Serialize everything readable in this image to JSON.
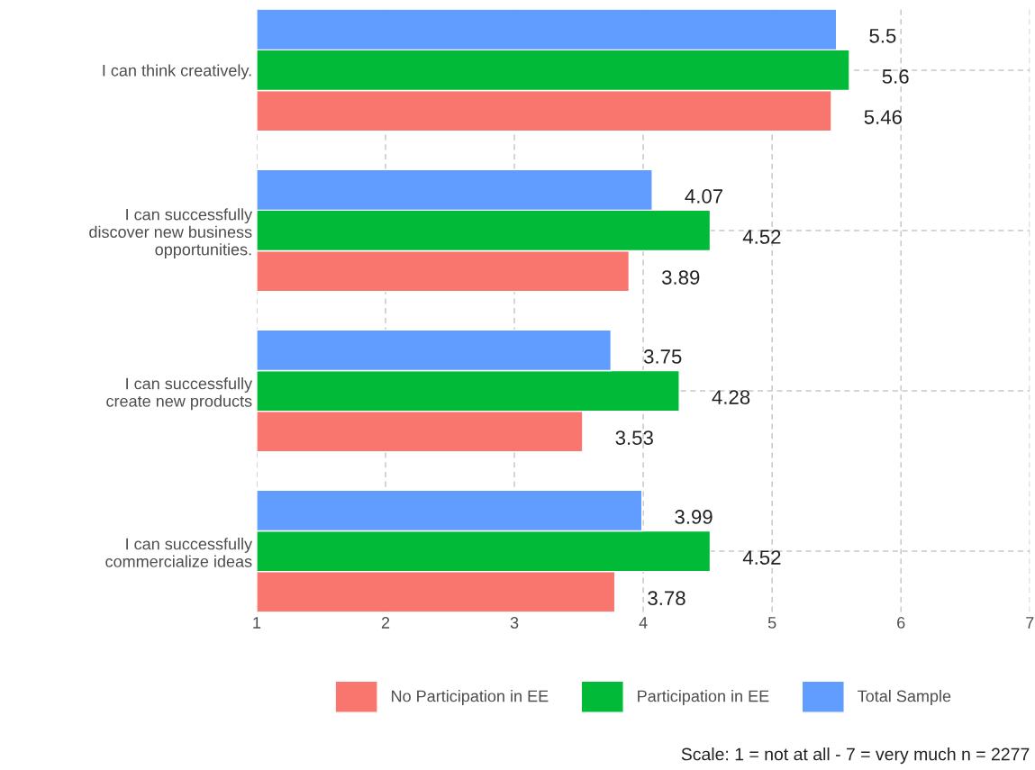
{
  "chart_data": {
    "type": "bar",
    "orientation": "horizontal",
    "categories": [
      "I can think creatively.",
      "I can successfully\ndiscover new business\nopportunities.",
      "I can successfully\ncreate new products",
      "I can successfully\ncommercialize ideas"
    ],
    "series": [
      {
        "name": "No Participation in EE",
        "color": "#f8766d",
        "values": [
          5.46,
          3.89,
          3.53,
          3.78
        ]
      },
      {
        "name": "Participation in EE",
        "color": "#00ba38",
        "values": [
          5.6,
          4.52,
          4.28,
          4.52
        ]
      },
      {
        "name": "Total Sample",
        "color": "#619cff",
        "values": [
          5.5,
          4.07,
          3.75,
          3.99
        ]
      }
    ],
    "xlim": [
      1,
      7
    ],
    "xticks": [
      1,
      2,
      3,
      4,
      5,
      6,
      7
    ],
    "data_labels": true,
    "grid": true,
    "legend": "bottom",
    "annotations": [
      "Scale: 1 = not at all - 7 = very much n = 2277"
    ]
  }
}
